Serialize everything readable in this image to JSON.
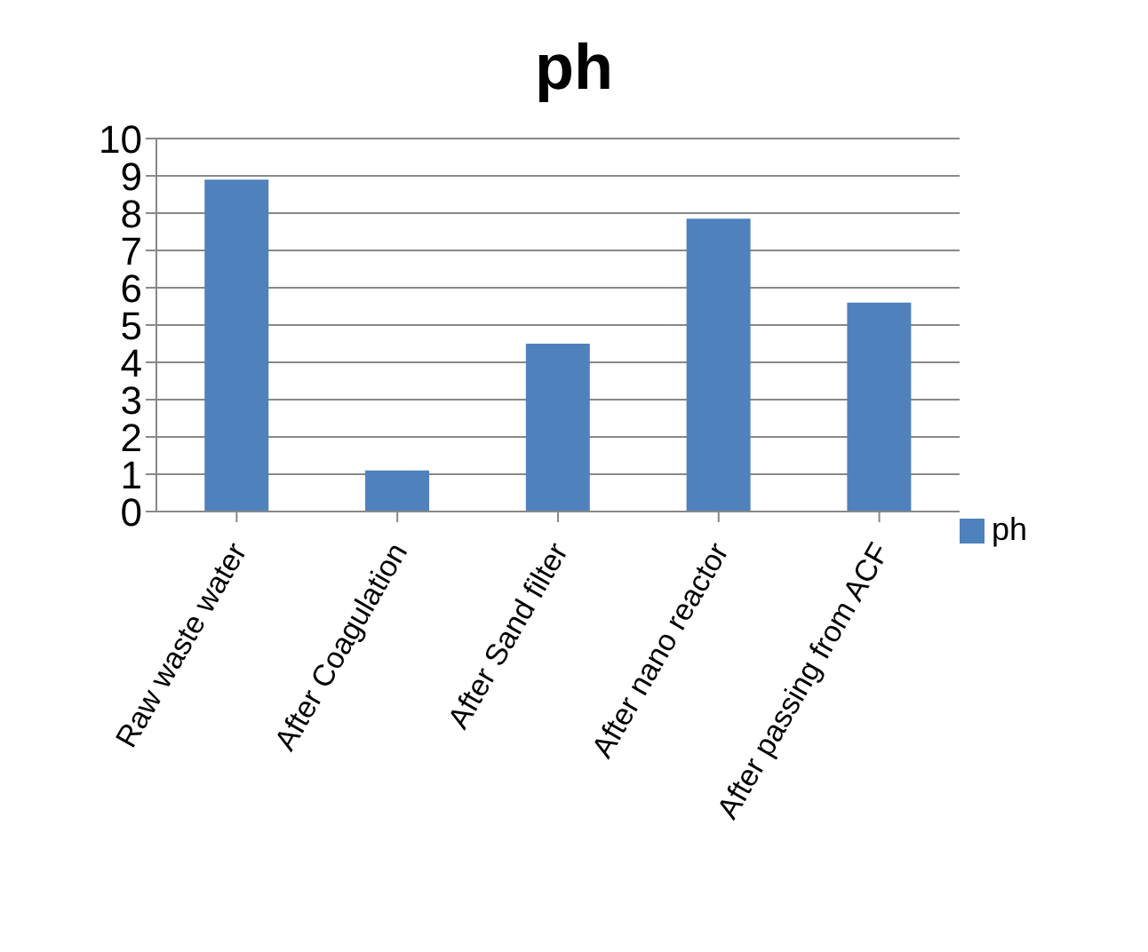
{
  "chart_data": {
    "type": "bar",
    "title": "ph",
    "categories": [
      "Raw waste water",
      "After Coagulation",
      "After Sand filter",
      "After nano reactor",
      "After passing from ACF"
    ],
    "series": [
      {
        "name": "ph",
        "color": "#4f81bd",
        "values": [
          8.9,
          1.1,
          4.5,
          7.85,
          5.6
        ]
      }
    ],
    "ylim": [
      0,
      10
    ],
    "yticks": [
      0,
      1,
      2,
      3,
      4,
      5,
      6,
      7,
      8,
      9,
      10
    ],
    "grid": "y",
    "legend": "right"
  }
}
